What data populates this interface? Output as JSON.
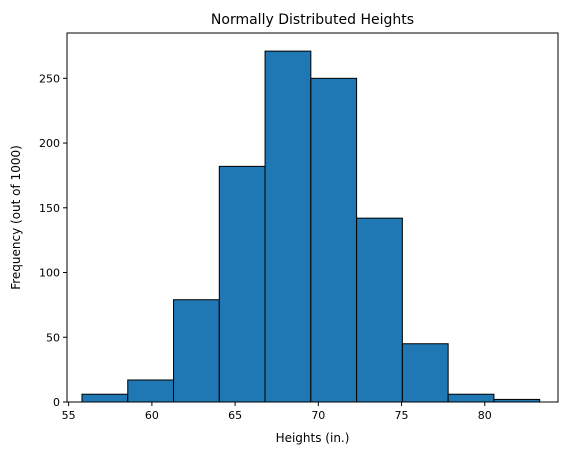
{
  "chart_data": {
    "type": "bar",
    "title": "Normally Distributed Heights",
    "xlabel": "Heights (in.)",
    "ylabel": "Frequency (out of 1000)",
    "xlim": [
      54.9,
      84.4
    ],
    "ylim": [
      0,
      285
    ],
    "xticks": [
      55,
      60,
      65,
      70,
      75,
      80
    ],
    "yticks": [
      0,
      50,
      100,
      150,
      200,
      250
    ],
    "bin_edges": [
      55.8,
      58.55,
      61.3,
      64.05,
      66.8,
      69.55,
      72.3,
      75.05,
      77.8,
      80.55,
      83.3
    ],
    "values": [
      6,
      17,
      79,
      182,
      271,
      250,
      142,
      45,
      6,
      2
    ],
    "bar_color": "#1f77b4",
    "edge_color": "#000000",
    "grid": false
  }
}
